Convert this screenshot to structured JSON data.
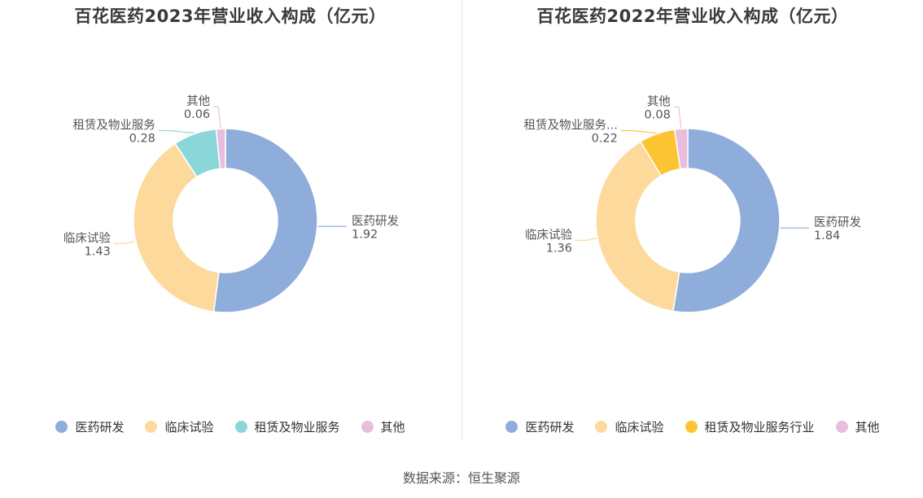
{
  "source_label": "数据来源：恒生聚源",
  "chart_data": [
    {
      "type": "pie",
      "title": "百花医药2023年营业收入构成（亿元）",
      "slices": [
        {
          "label": "医药研发",
          "display_label": "医药研发",
          "value": 1.92,
          "value_text": "1.92",
          "color": "#8eaddb"
        },
        {
          "label": "临床试验",
          "display_label": "临床试验",
          "value": 1.43,
          "value_text": "1.43",
          "color": "#fdd99c"
        },
        {
          "label": "租赁及物业服务",
          "display_label": "租赁及物业服务",
          "value": 0.28,
          "value_text": "0.28",
          "color": "#8bd6d9"
        },
        {
          "label": "其他",
          "display_label": "其他",
          "value": 0.06,
          "value_text": "0.06",
          "color": "#e8bedc"
        }
      ],
      "legend_position": "bottom"
    },
    {
      "type": "pie",
      "title": "百花医药2022年营业收入构成（亿元）",
      "slices": [
        {
          "label": "医药研发",
          "display_label": "医药研发",
          "value": 1.84,
          "value_text": "1.84",
          "color": "#8eaddb"
        },
        {
          "label": "临床试验",
          "display_label": "临床试验",
          "value": 1.36,
          "value_text": "1.36",
          "color": "#fdd99c"
        },
        {
          "label": "租赁及物业服务行业",
          "display_label": "租赁及物业服务...",
          "value": 0.22,
          "value_text": "0.22",
          "color": "#fcc332"
        },
        {
          "label": "其他",
          "display_label": "其他",
          "value": 0.08,
          "value_text": "0.08",
          "color": "#e8bedc"
        }
      ],
      "legend_position": "bottom"
    }
  ]
}
